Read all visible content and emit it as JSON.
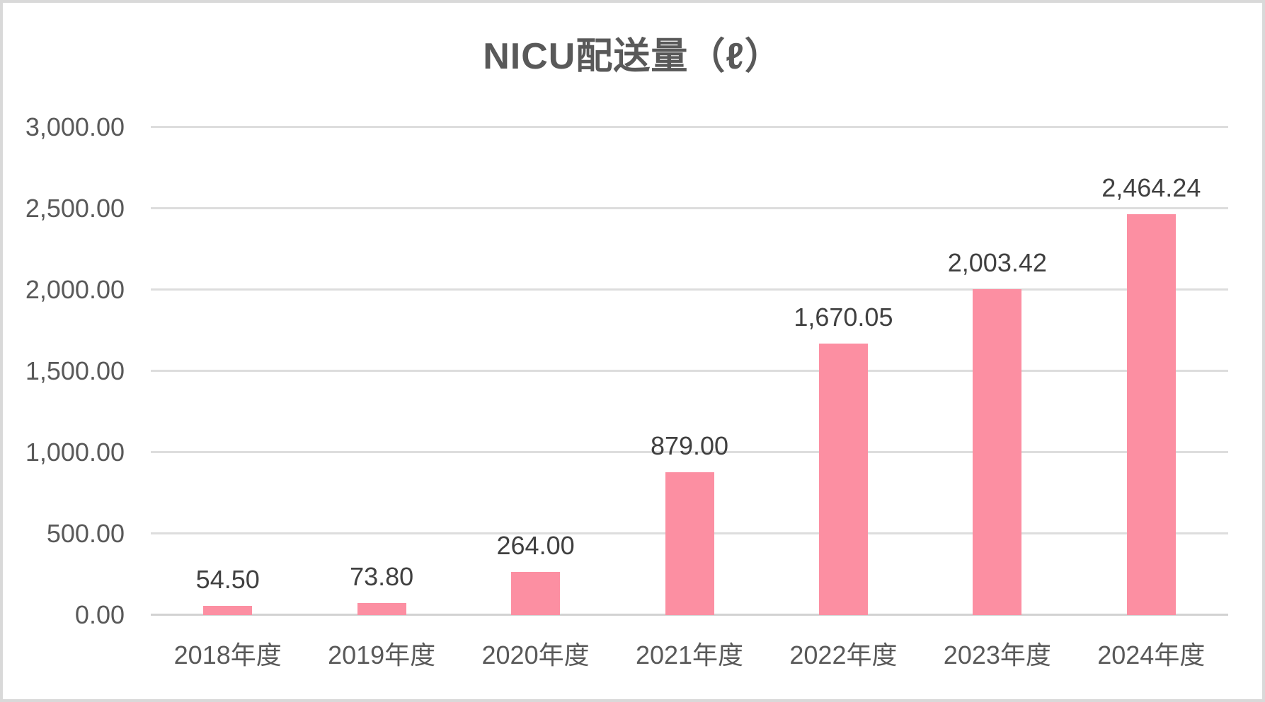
{
  "chart_data": {
    "type": "bar",
    "title": "NICU配送量（ℓ）",
    "categories": [
      "2018年度",
      "2019年度",
      "2020年度",
      "2021年度",
      "2022年度",
      "2023年度",
      "2024年度"
    ],
    "values": [
      54.5,
      73.8,
      264.0,
      879.0,
      1670.05,
      2003.42,
      2464.24
    ],
    "data_labels": [
      "54.50",
      "73.80",
      "264.00",
      "879.00",
      "1,670.05",
      "2,003.42",
      "2,464.24"
    ],
    "xlabel": "",
    "ylabel": "",
    "ylim": [
      0,
      3000
    ],
    "y_step": 500,
    "y_tick_labels": [
      "0.00",
      "500.00",
      "1,000.00",
      "1,500.00",
      "2,000.00",
      "2,500.00",
      "3,000.00"
    ],
    "grid": true,
    "legend": "none",
    "bar_color": "#FC8FA2"
  },
  "colors": {
    "background": "#FFFFFF",
    "canvas_border": "#D9D9D9",
    "title_text": "#595959",
    "axis_text": "#595959",
    "data_label_text": "#404040",
    "gridline": "#DDDDDD",
    "axis_line": "#D2D2D2"
  }
}
